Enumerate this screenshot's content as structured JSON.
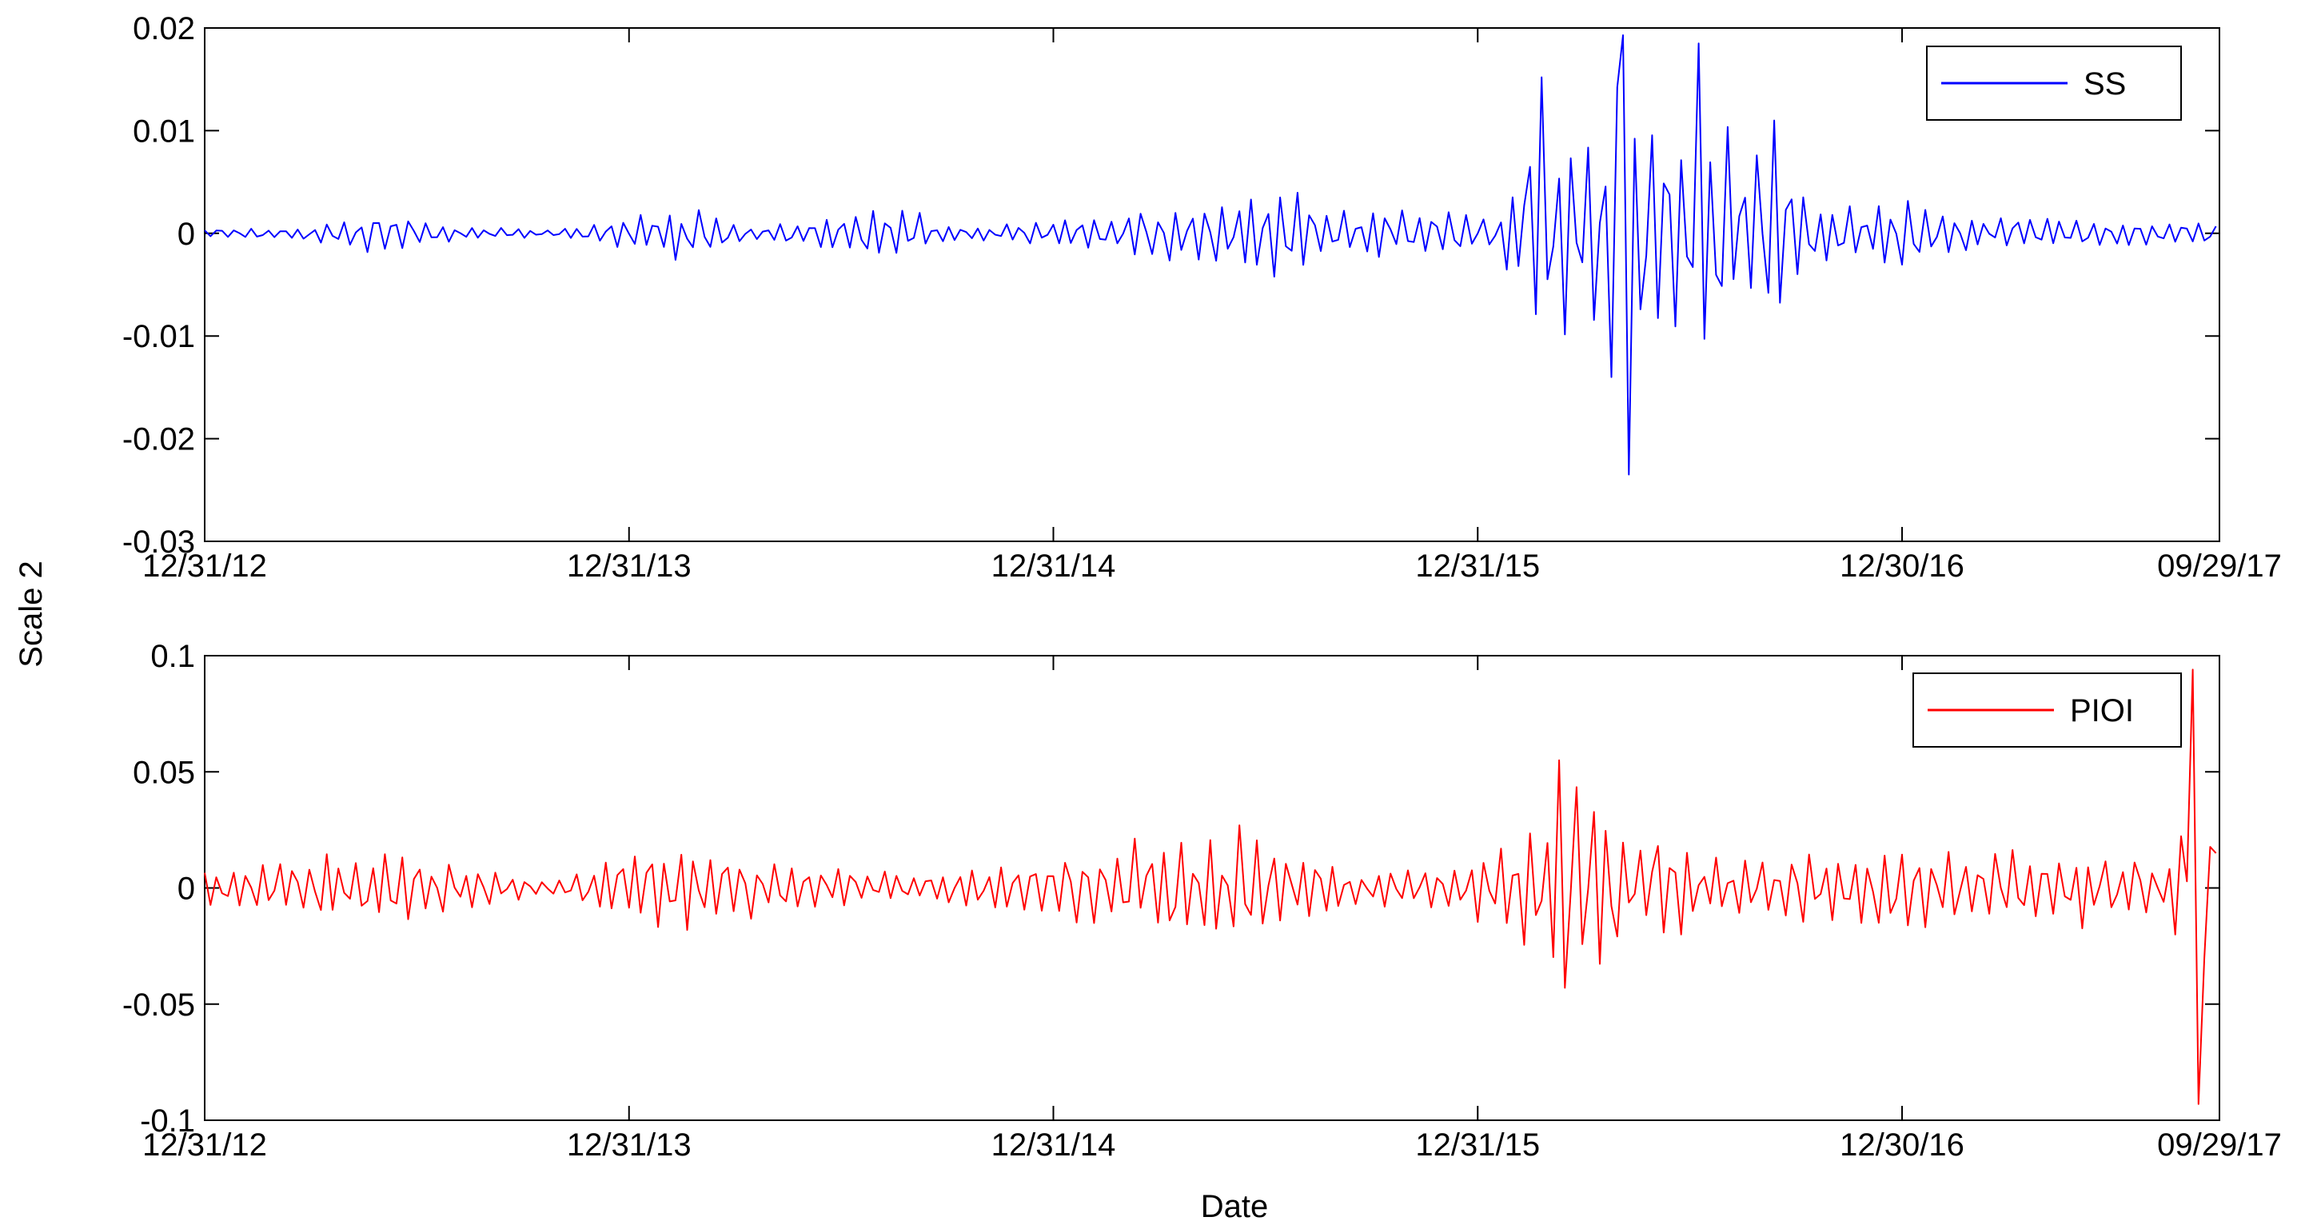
{
  "figure": {
    "ylabel": "Scale 2",
    "xlabel": "Date"
  },
  "chart_data": [
    {
      "type": "line",
      "panel": "top",
      "ylim": [
        -0.03,
        0.02
      ],
      "y_ticks": [
        0.02,
        0.01,
        0,
        -0.01,
        -0.02,
        -0.03
      ],
      "y_tick_labels": [
        "0.02",
        "0.01",
        "0",
        "-0.01",
        "-0.02",
        "-0.03"
      ],
      "x_ticks": [
        "2012-12-31",
        "2013-12-31",
        "2014-12-31",
        "2015-12-31",
        "2016-12-30",
        "2017-09-29"
      ],
      "x_tick_labels": [
        "12/31/12",
        "12/31/13",
        "12/31/14",
        "12/31/15",
        "12/30/16",
        "09/29/17"
      ],
      "xlim": [
        "2012-12-31",
        "2017-09-29"
      ],
      "xlabel": "",
      "legend_position": "top-right",
      "series": [
        {
          "name": "SS",
          "color": "#0000ff",
          "sampling": "every 5 days starting 2012-12-31",
          "envelope": [
            {
              "x": "2012-12-31",
              "amplitude": 0.0005
            },
            {
              "x": "2013-04-01",
              "amplitude": 0.0007
            },
            {
              "x": "2013-06-01",
              "amplitude": 0.0025
            },
            {
              "x": "2013-08-01",
              "amplitude": 0.0008
            },
            {
              "x": "2013-11-01",
              "amplitude": 0.0004
            },
            {
              "x": "2014-02-10",
              "amplitude": 0.003
            },
            {
              "x": "2014-04-15",
              "amplitude": 0.0008
            },
            {
              "x": "2014-08-20",
              "amplitude": 0.0028
            },
            {
              "x": "2014-10-15",
              "amplitude": 0.0007
            },
            {
              "x": "2015-03-01",
              "amplitude": 0.002
            },
            {
              "x": "2015-06-01",
              "amplitude": 0.004
            },
            {
              "x": "2015-07-20",
              "amplitude": 0.0055
            },
            {
              "x": "2015-08-30",
              "amplitude": 0.0025
            },
            {
              "x": "2015-11-15",
              "amplitude": 0.003
            },
            {
              "x": "2016-01-20",
              "amplitude": 0.002
            },
            {
              "x": "2016-02-25",
              "amplitude": 0.015
            },
            {
              "x": "2016-03-30",
              "amplitude": 0.009
            },
            {
              "x": "2016-05-05",
              "amplitude": 0.019
            },
            {
              "x": "2016-06-10",
              "amplitude": 0.008
            },
            {
              "x": "2016-07-10",
              "amplitude": 0.0185
            },
            {
              "x": "2016-08-15",
              "amplitude": 0.006
            },
            {
              "x": "2016-09-12",
              "amplitude": 0.011
            },
            {
              "x": "2016-10-20",
              "amplitude": 0.003
            },
            {
              "x": "2016-12-20",
              "amplitude": 0.004
            },
            {
              "x": "2017-03-01",
              "amplitude": 0.002
            },
            {
              "x": "2017-06-01",
              "amplitude": 0.0015
            },
            {
              "x": "2017-09-29",
              "amplitude": 0.001
            }
          ],
          "extremes": [
            {
              "x": "2016-05-05",
              "y": 0.0193
            },
            {
              "x": "2016-05-10",
              "y": -0.0235
            },
            {
              "x": "2016-07-10",
              "y": 0.0185
            },
            {
              "x": "2016-02-25",
              "y": 0.0152
            },
            {
              "x": "2016-09-12",
              "y": 0.011
            }
          ]
        }
      ]
    },
    {
      "type": "line",
      "panel": "bottom",
      "ylim": [
        -0.1,
        0.1
      ],
      "y_ticks": [
        0.1,
        0.05,
        0,
        -0.05,
        -0.1
      ],
      "y_tick_labels": [
        "0.1",
        "0.05",
        "0",
        "-0.05",
        "-0.1"
      ],
      "x_ticks": [
        "2012-12-31",
        "2013-12-31",
        "2014-12-31",
        "2015-12-31",
        "2016-12-30",
        "2017-09-29"
      ],
      "x_tick_labels": [
        "12/31/12",
        "12/31/13",
        "12/31/14",
        "12/31/15",
        "12/30/16",
        "09/29/17"
      ],
      "xlim": [
        "2012-12-31",
        "2017-09-29"
      ],
      "xlabel": "Date",
      "legend_position": "top-right",
      "series": [
        {
          "name": "PIOI",
          "color": "#ff0000",
          "sampling": "every 5 days starting 2012-12-31",
          "envelope": [
            {
              "x": "2012-12-31",
              "amplitude": 0.008
            },
            {
              "x": "2013-03-01",
              "amplitude": 0.012
            },
            {
              "x": "2013-06-01",
              "amplitude": 0.02
            },
            {
              "x": "2013-08-15",
              "amplitude": 0.01
            },
            {
              "x": "2013-11-01",
              "amplitude": 0.004
            },
            {
              "x": "2014-02-10",
              "amplitude": 0.023
            },
            {
              "x": "2014-05-01",
              "amplitude": 0.012
            },
            {
              "x": "2014-09-01",
              "amplitude": 0.007
            },
            {
              "x": "2014-12-01",
              "amplitude": 0.012
            },
            {
              "x": "2015-04-15",
              "amplitude": 0.025
            },
            {
              "x": "2015-06-20",
              "amplitude": 0.028
            },
            {
              "x": "2015-09-01",
              "amplitude": 0.01
            },
            {
              "x": "2015-12-01",
              "amplitude": 0.012
            },
            {
              "x": "2016-02-01",
              "amplitude": 0.02
            },
            {
              "x": "2016-03-10",
              "amplitude": 0.055
            },
            {
              "x": "2016-05-01",
              "amplitude": 0.033
            },
            {
              "x": "2016-07-15",
              "amplitude": 0.015
            },
            {
              "x": "2016-11-20",
              "amplitude": 0.018
            },
            {
              "x": "2017-03-01",
              "amplitude": 0.018
            },
            {
              "x": "2017-07-01",
              "amplitude": 0.018
            },
            {
              "x": "2017-08-20",
              "amplitude": 0.012
            },
            {
              "x": "2017-09-08",
              "amplitude": 0.094
            },
            {
              "x": "2017-09-29",
              "amplitude": 0.02
            }
          ],
          "extremes": [
            {
              "x": "2017-09-08",
              "y": 0.094
            },
            {
              "x": "2017-09-13",
              "y": -0.093
            },
            {
              "x": "2016-03-10",
              "y": 0.055
            },
            {
              "x": "2016-03-15",
              "y": -0.043
            }
          ]
        }
      ]
    }
  ]
}
